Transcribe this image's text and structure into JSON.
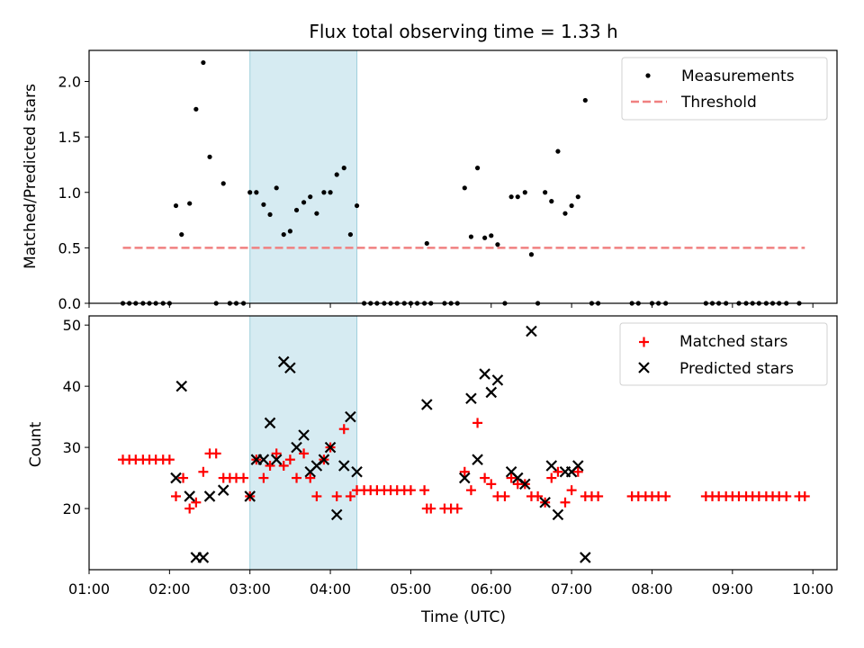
{
  "chart_data": [
    {
      "type": "scatter",
      "title": "Flux total observing time = 1.33 h",
      "xlabel": "",
      "ylabel": "Matched/Predicted stars",
      "xlim": [
        1.0,
        10.3
      ],
      "ylim": [
        0.0,
        2.28
      ],
      "yticks": [
        0.0,
        0.5,
        1.0,
        1.5,
        2.0
      ],
      "ytick_labels": [
        "0.0",
        "0.5",
        "1.0",
        "1.5",
        "2.0"
      ],
      "shaded_span": [
        3.0,
        4.33
      ],
      "legend_position": "top-right",
      "series": [
        {
          "name": "Measurements",
          "marker": "dot",
          "color": "#000000",
          "points": [
            [
              1.42,
              0
            ],
            [
              1.5,
              0
            ],
            [
              1.58,
              0
            ],
            [
              1.67,
              0
            ],
            [
              1.75,
              0
            ],
            [
              1.83,
              0
            ],
            [
              1.92,
              0
            ],
            [
              2.0,
              0
            ],
            [
              2.08,
              0.88
            ],
            [
              2.15,
              0.62
            ],
            [
              2.25,
              0.9
            ],
            [
              2.33,
              1.75
            ],
            [
              2.42,
              2.17
            ],
            [
              2.5,
              1.32
            ],
            [
              2.58,
              0
            ],
            [
              2.67,
              1.08
            ],
            [
              2.75,
              0
            ],
            [
              2.83,
              0
            ],
            [
              2.92,
              0
            ],
            [
              3.0,
              1.0
            ],
            [
              3.08,
              1.0
            ],
            [
              3.17,
              0.89
            ],
            [
              3.25,
              0.8
            ],
            [
              3.33,
              1.04
            ],
            [
              3.42,
              0.62
            ],
            [
              3.5,
              0.65
            ],
            [
              3.58,
              0.84
            ],
            [
              3.67,
              0.91
            ],
            [
              3.75,
              0.96
            ],
            [
              3.83,
              0.81
            ],
            [
              3.92,
              1.0
            ],
            [
              4.0,
              1.0
            ],
            [
              4.08,
              1.16
            ],
            [
              4.17,
              1.22
            ],
            [
              4.25,
              0.62
            ],
            [
              4.33,
              0.88
            ],
            [
              4.42,
              0
            ],
            [
              4.5,
              0
            ],
            [
              4.58,
              0
            ],
            [
              4.67,
              0
            ],
            [
              4.75,
              0
            ],
            [
              4.83,
              0
            ],
            [
              4.92,
              0
            ],
            [
              5.0,
              0
            ],
            [
              5.08,
              0
            ],
            [
              5.17,
              0
            ],
            [
              5.2,
              0.54
            ],
            [
              5.25,
              0
            ],
            [
              5.42,
              0
            ],
            [
              5.5,
              0
            ],
            [
              5.58,
              0
            ],
            [
              5.67,
              1.04
            ],
            [
              5.75,
              0.6
            ],
            [
              5.83,
              1.22
            ],
            [
              5.92,
              0.59
            ],
            [
              6.0,
              0.61
            ],
            [
              6.08,
              0.53
            ],
            [
              6.17,
              0
            ],
            [
              6.25,
              0.96
            ],
            [
              6.33,
              0.96
            ],
            [
              6.42,
              1.0
            ],
            [
              6.5,
              0.44
            ],
            [
              6.58,
              0
            ],
            [
              6.67,
              1.0
            ],
            [
              6.75,
              0.92
            ],
            [
              6.83,
              1.37
            ],
            [
              6.92,
              0.81
            ],
            [
              7.0,
              0.88
            ],
            [
              7.08,
              0.96
            ],
            [
              7.17,
              1.83
            ],
            [
              7.25,
              0
            ],
            [
              7.33,
              0
            ],
            [
              7.75,
              0
            ],
            [
              7.83,
              0
            ],
            [
              8.0,
              0
            ],
            [
              8.08,
              0
            ],
            [
              8.17,
              0
            ],
            [
              8.67,
              0
            ],
            [
              8.75,
              0
            ],
            [
              8.83,
              0
            ],
            [
              8.92,
              0
            ],
            [
              9.08,
              0
            ],
            [
              9.17,
              0
            ],
            [
              9.25,
              0
            ],
            [
              9.33,
              0
            ],
            [
              9.42,
              0
            ],
            [
              9.5,
              0
            ],
            [
              9.58,
              0
            ],
            [
              9.67,
              0
            ],
            [
              9.83,
              0
            ]
          ]
        },
        {
          "name": "Threshold",
          "marker": "dashed-line",
          "color": "#f08080",
          "points": [
            [
              1.42,
              0.5
            ],
            [
              9.9,
              0.5
            ]
          ]
        }
      ]
    },
    {
      "type": "scatter",
      "title": "",
      "xlabel": "Time (UTC)",
      "ylabel": "Count",
      "xlim": [
        1.0,
        10.3
      ],
      "ylim": [
        10.0,
        51.5
      ],
      "xticks": [
        1,
        2,
        3,
        4,
        5,
        6,
        7,
        8,
        9,
        10
      ],
      "xtick_labels": [
        "01:00",
        "02:00",
        "03:00",
        "04:00",
        "05:00",
        "06:00",
        "07:00",
        "08:00",
        "09:00",
        "10:00"
      ],
      "yticks": [
        20,
        30,
        40,
        50
      ],
      "ytick_labels": [
        "20",
        "30",
        "40",
        "50"
      ],
      "shaded_span": [
        3.0,
        4.33
      ],
      "legend_position": "top-right",
      "series": [
        {
          "name": "Matched stars",
          "marker": "plus",
          "color": "#ff0000",
          "points": [
            [
              1.42,
              28
            ],
            [
              1.5,
              28
            ],
            [
              1.58,
              28
            ],
            [
              1.67,
              28
            ],
            [
              1.75,
              28
            ],
            [
              1.83,
              28
            ],
            [
              1.92,
              28
            ],
            [
              2.0,
              28
            ],
            [
              2.08,
              22
            ],
            [
              2.17,
              25
            ],
            [
              2.25,
              20
            ],
            [
              2.33,
              21
            ],
            [
              2.42,
              26
            ],
            [
              2.5,
              29
            ],
            [
              2.58,
              29
            ],
            [
              2.67,
              25
            ],
            [
              2.75,
              25
            ],
            [
              2.83,
              25
            ],
            [
              2.92,
              25
            ],
            [
              3.0,
              22
            ],
            [
              3.08,
              28
            ],
            [
              3.17,
              25
            ],
            [
              3.25,
              27
            ],
            [
              3.33,
              29
            ],
            [
              3.42,
              27
            ],
            [
              3.5,
              28
            ],
            [
              3.58,
              25
            ],
            [
              3.67,
              29
            ],
            [
              3.75,
              25
            ],
            [
              3.83,
              22
            ],
            [
              3.92,
              28
            ],
            [
              4.0,
              30
            ],
            [
              4.08,
              22
            ],
            [
              4.17,
              33
            ],
            [
              4.25,
              22
            ],
            [
              4.33,
              23
            ],
            [
              4.42,
              23
            ],
            [
              4.5,
              23
            ],
            [
              4.58,
              23
            ],
            [
              4.67,
              23
            ],
            [
              4.75,
              23
            ],
            [
              4.83,
              23
            ],
            [
              4.92,
              23
            ],
            [
              5.0,
              23
            ],
            [
              5.17,
              23
            ],
            [
              5.2,
              20
            ],
            [
              5.25,
              20
            ],
            [
              5.42,
              20
            ],
            [
              5.5,
              20
            ],
            [
              5.58,
              20
            ],
            [
              5.67,
              26
            ],
            [
              5.75,
              23
            ],
            [
              5.83,
              34
            ],
            [
              5.92,
              25
            ],
            [
              6.0,
              24
            ],
            [
              6.08,
              22
            ],
            [
              6.17,
              22
            ],
            [
              6.25,
              25
            ],
            [
              6.33,
              24
            ],
            [
              6.42,
              24
            ],
            [
              6.5,
              22
            ],
            [
              6.58,
              22
            ],
            [
              6.67,
              21
            ],
            [
              6.75,
              25
            ],
            [
              6.83,
              26
            ],
            [
              6.92,
              21
            ],
            [
              7.0,
              23
            ],
            [
              7.08,
              26
            ],
            [
              7.17,
              22
            ],
            [
              7.25,
              22
            ],
            [
              7.33,
              22
            ],
            [
              7.75,
              22
            ],
            [
              7.83,
              22
            ],
            [
              7.92,
              22
            ],
            [
              8.0,
              22
            ],
            [
              8.08,
              22
            ],
            [
              8.17,
              22
            ],
            [
              8.67,
              22
            ],
            [
              8.75,
              22
            ],
            [
              8.83,
              22
            ],
            [
              8.92,
              22
            ],
            [
              9.0,
              22
            ],
            [
              9.08,
              22
            ],
            [
              9.17,
              22
            ],
            [
              9.25,
              22
            ],
            [
              9.33,
              22
            ],
            [
              9.42,
              22
            ],
            [
              9.5,
              22
            ],
            [
              9.58,
              22
            ],
            [
              9.67,
              22
            ],
            [
              9.83,
              22
            ],
            [
              9.9,
              22
            ]
          ]
        },
        {
          "name": "Predicted stars",
          "marker": "x",
          "color": "#000000",
          "points": [
            [
              2.08,
              25
            ],
            [
              2.15,
              40
            ],
            [
              2.25,
              22
            ],
            [
              2.33,
              12
            ],
            [
              2.42,
              12
            ],
            [
              2.5,
              22
            ],
            [
              2.67,
              23
            ],
            [
              3.0,
              22
            ],
            [
              3.08,
              28
            ],
            [
              3.17,
              28
            ],
            [
              3.25,
              34
            ],
            [
              3.33,
              28
            ],
            [
              3.42,
              44
            ],
            [
              3.5,
              43
            ],
            [
              3.58,
              30
            ],
            [
              3.67,
              32
            ],
            [
              3.75,
              26
            ],
            [
              3.83,
              27
            ],
            [
              3.92,
              28
            ],
            [
              4.0,
              30
            ],
            [
              4.08,
              19
            ],
            [
              4.17,
              27
            ],
            [
              4.25,
              35
            ],
            [
              4.33,
              26
            ],
            [
              5.2,
              37
            ],
            [
              5.67,
              25
            ],
            [
              5.75,
              38
            ],
            [
              5.83,
              28
            ],
            [
              5.92,
              42
            ],
            [
              6.0,
              39
            ],
            [
              6.08,
              41
            ],
            [
              6.25,
              26
            ],
            [
              6.33,
              25
            ],
            [
              6.42,
              24
            ],
            [
              6.5,
              49
            ],
            [
              6.67,
              21
            ],
            [
              6.75,
              27
            ],
            [
              6.83,
              19
            ],
            [
              6.92,
              26
            ],
            [
              7.0,
              26
            ],
            [
              7.08,
              27
            ],
            [
              7.17,
              12
            ]
          ]
        }
      ]
    }
  ]
}
